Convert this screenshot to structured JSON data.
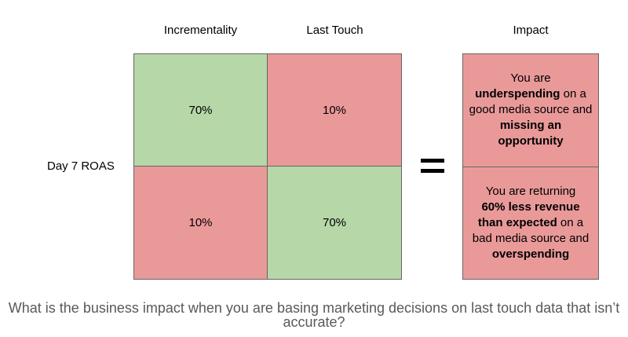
{
  "headers": {
    "incrementality": "Incrementality",
    "last_touch": "Last Touch",
    "impact": "Impact"
  },
  "row_label": "Day 7 ROAS",
  "matrix": {
    "top_left": "70%",
    "top_right": "10%",
    "bottom_left": "10%",
    "bottom_right": "70%"
  },
  "equals_symbol": "=",
  "impact": {
    "top": {
      "line1": "You are",
      "bold1": "underspending",
      "text2": " on a good media source and ",
      "bold2": "missing an opportunity"
    },
    "bottom": {
      "line1": "You are returning",
      "bold1": "60% less revenue than expected",
      "text2": " on a bad media source and ",
      "bold2": "overspending"
    }
  },
  "question": "What is the business impact when you are basing marketing decisions on last touch data that isn’t accurate?",
  "colors": {
    "positive": "#b6d7a8",
    "negative": "#ea9999",
    "border": "#666666",
    "question_text": "#595959"
  }
}
